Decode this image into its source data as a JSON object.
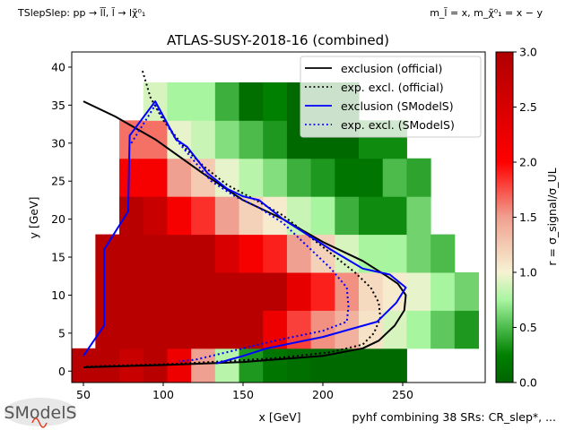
{
  "header": {
    "topo_label": "TSlepSlep: pp → l̃l̃, l̃ → lχ̃⁰₁",
    "mass_label": "m_l̃ = x, m_χ̃⁰₁ = x − y"
  },
  "footer": {
    "logo_text": "SModelS",
    "combination_note": "pyhf combining 38 SRs: CR_slep*, ..."
  },
  "chart_data": {
    "type": "heatmap",
    "title": "ATLAS-SUSY-2018-16 (combined)",
    "xlabel": "x [GeV]",
    "ylabel": "y [GeV]",
    "xlim": [
      42.7,
      301.7
    ],
    "ylim": [
      -1.5,
      42
    ],
    "xticks": [
      50,
      100,
      150,
      200,
      250
    ],
    "yticks": [
      0,
      5,
      10,
      15,
      20,
      25,
      30,
      35,
      40
    ],
    "colorbar": {
      "label": "r = σ_signal/σ_UL",
      "range": [
        0,
        3
      ],
      "ticks": [
        "0.0",
        "0.5",
        "1.0",
        "1.5",
        "2.0",
        "2.5",
        "3.0"
      ],
      "stops": [
        {
          "v": 0.0,
          "c": "#006400"
        },
        {
          "v": 0.25,
          "c": "#008000"
        },
        {
          "v": 0.5,
          "c": "#4cbb4c"
        },
        {
          "v": 0.75,
          "c": "#a8f5a0"
        },
        {
          "v": 1.0,
          "c": "#f7f3d4"
        },
        {
          "v": 1.5,
          "c": "#f0a090"
        },
        {
          "v": 2.0,
          "c": "#ff0000"
        },
        {
          "v": 3.0,
          "c": "#b00000"
        }
      ]
    },
    "grid": false,
    "legend_position": "top-right",
    "cell_width_gev": 15,
    "cell_height_gev": 5,
    "rows": [
      {
        "y": 1,
        "x_start": 42.5,
        "r": [
          2.9,
          2.9,
          2.7,
          2.9,
          2.2,
          1.5,
          0.8,
          0.35,
          0.15,
          0.1,
          0.05,
          0.05,
          0.05,
          0.05
        ]
      },
      {
        "y": 6,
        "x_start": 57.5,
        "r": [
          2.9,
          2.9,
          2.9,
          2.9,
          2.9,
          2.9,
          2.9,
          2.2,
          1.8,
          1.55,
          1.4,
          1.1,
          0.9,
          0.75,
          0.55,
          0.35
        ]
      },
      {
        "y": 11,
        "x_start": 57.5,
        "r": [
          2.9,
          2.9,
          2.9,
          2.9,
          2.9,
          2.9,
          2.9,
          2.9,
          2.3,
          1.9,
          1.55,
          1.15,
          1.05,
          0.95,
          0.75,
          0.6
        ]
      },
      {
        "y": 16,
        "x_start": 57.5,
        "r": [
          2.9,
          2.9,
          2.9,
          2.9,
          2.9,
          2.5,
          2.1,
          1.9,
          1.5,
          1.2,
          0.9,
          0.75,
          0.75,
          0.6,
          0.5
        ]
      },
      {
        "y": 21,
        "x_start": 72.5,
        "r": [
          2.9,
          2.7,
          2.1,
          1.85,
          1.5,
          1.2,
          1.05,
          0.85,
          0.75,
          0.45,
          0.3,
          0.3,
          0.6
        ]
      },
      {
        "y": 26,
        "x_start": 72.5,
        "r": [
          2.1,
          2.1,
          1.5,
          1.25,
          0.95,
          0.8,
          0.65,
          0.45,
          0.35,
          0.15,
          0.15,
          0.5,
          0.4
        ]
      },
      {
        "y": 31,
        "x_start": 72.5,
        "r": [
          1.65,
          1.65,
          0.95,
          0.85,
          0.65,
          0.5,
          0.35,
          0.05,
          0.05,
          0.05,
          0.3,
          0.3
        ]
      },
      {
        "y": 36,
        "x_start": 87.5,
        "r": [
          0.9,
          0.75,
          0.75,
          0.45,
          0.1,
          0.25,
          0.05,
          0.05,
          0.05
        ]
      }
    ],
    "series": [
      {
        "name": "exclusion (official)",
        "color": "#000000",
        "style": "solid",
        "points": [
          [
            50,
            35.5
          ],
          [
            70,
            33.5
          ],
          [
            95,
            30.5
          ],
          [
            125,
            26
          ],
          [
            150,
            22.5
          ],
          [
            175,
            20
          ],
          [
            200,
            17
          ],
          [
            225,
            14.5
          ],
          [
            240,
            12.5
          ],
          [
            247,
            11.5
          ],
          [
            252,
            10
          ],
          [
            251,
            8
          ],
          [
            245,
            6
          ],
          [
            235,
            4
          ],
          [
            225,
            3
          ],
          [
            200,
            2
          ],
          [
            150,
            1.2
          ],
          [
            100,
            0.8
          ],
          [
            50,
            0.5
          ]
        ]
      },
      {
        "name": "exp. excl. (official)",
        "color": "#000000",
        "style": "dotted",
        "points": [
          [
            87,
            39.5
          ],
          [
            92,
            36
          ],
          [
            100,
            33
          ],
          [
            113,
            29.5
          ],
          [
            125,
            27
          ],
          [
            140,
            24.5
          ],
          [
            158,
            22.5
          ],
          [
            175,
            20.5
          ],
          [
            190,
            18
          ],
          [
            205,
            15.5
          ],
          [
            220,
            13
          ],
          [
            230,
            11
          ],
          [
            235,
            9
          ],
          [
            236,
            7
          ],
          [
            232,
            5
          ],
          [
            225,
            3.5
          ],
          [
            205,
            2.5
          ],
          [
            170,
            1.7
          ],
          [
            130,
            1.2
          ],
          [
            100,
            0.9
          ],
          [
            50,
            0.6
          ]
        ]
      },
      {
        "name": "exclusion (SModelS)",
        "color": "#0000ff",
        "style": "solid",
        "points": [
          [
            50,
            2
          ],
          [
            63,
            6
          ],
          [
            63,
            16
          ],
          [
            78,
            21
          ],
          [
            79,
            31
          ],
          [
            95,
            35.5
          ],
          [
            108,
            30.5
          ],
          [
            115,
            29.5
          ],
          [
            128,
            26
          ],
          [
            140,
            24
          ],
          [
            150,
            23
          ],
          [
            160,
            22.5
          ],
          [
            175,
            20
          ],
          [
            190,
            18
          ],
          [
            205,
            16
          ],
          [
            225,
            13.5
          ],
          [
            242,
            12.7
          ],
          [
            252,
            11
          ],
          [
            246,
            9
          ],
          [
            234,
            6.5
          ],
          [
            200,
            4.5
          ],
          [
            165,
            3
          ],
          [
            150,
            2
          ],
          [
            133,
            1
          ]
        ]
      },
      {
        "name": "exp. excl. (SModelS)",
        "color": "#0000ff",
        "style": "dotted",
        "points": [
          [
            80,
            30
          ],
          [
            95,
            35
          ],
          [
            108,
            30.5
          ],
          [
            118,
            28
          ],
          [
            130,
            25
          ],
          [
            145,
            23
          ],
          [
            160,
            21.5
          ],
          [
            175,
            19.5
          ],
          [
            190,
            16.5
          ],
          [
            205,
            13.5
          ],
          [
            215,
            11
          ],
          [
            216,
            8.5
          ],
          [
            215,
            6.5
          ],
          [
            200,
            5.3
          ],
          [
            170,
            4
          ],
          [
            140,
            2.5
          ],
          [
            120,
            1.5
          ],
          [
            110,
            1.3
          ]
        ]
      }
    ]
  }
}
